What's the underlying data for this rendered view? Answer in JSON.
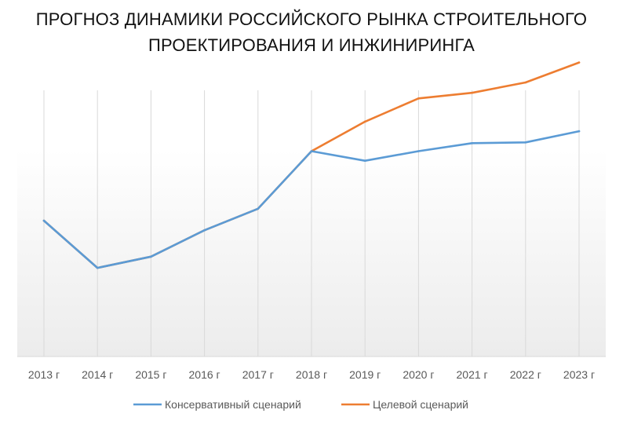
{
  "chart_data": {
    "type": "line",
    "title_lines": [
      "ПРОГНОЗ ДИНАМИКИ РОССИЙСКОГО РЫНКА СТРОИТЕЛЬНОГО",
      "ПРОЕКТИРОВАНИЯ И ИНЖИНИРИНГА"
    ],
    "categories": [
      "2013 г",
      "2014 г",
      "2015 г",
      "2016 г",
      "2017 г",
      "2018 г",
      "2019 г",
      "2020 г",
      "2021 г",
      "2022 г",
      "2023 г"
    ],
    "series": [
      {
        "name": "Консервативный сценарий",
        "color": "#5B9BD5",
        "values": [
          170,
          111,
          125,
          158,
          185,
          257,
          245,
          257,
          267,
          268,
          282
        ]
      },
      {
        "name": "Целевой сценарий",
        "color": "#ED7D31",
        "values": [
          170,
          111,
          125,
          158,
          185,
          257,
          294,
          323,
          330,
          343,
          368
        ]
      }
    ],
    "ylim": [
      0,
      400
    ],
    "y_axis_labels_visible": false,
    "vertical_gridlines": true,
    "horizontal_gridlines": false,
    "legend_position": "bottom"
  }
}
